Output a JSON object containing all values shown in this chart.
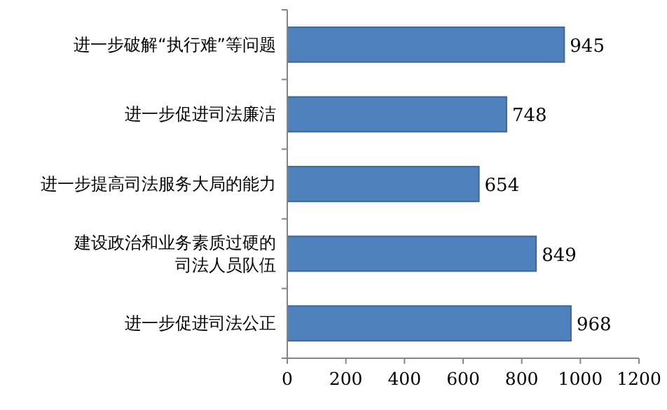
{
  "chart_data": {
    "type": "bar",
    "orientation": "horizontal",
    "categories": [
      "进一步破解“执行难”等问题",
      "进一步促进司法廉洁",
      "进一步提高司法服务大局的能力",
      "建设政治和业务素质过硬的司法人员队伍",
      "进一步促进司法公正"
    ],
    "values": [
      945,
      748,
      654,
      849,
      968
    ],
    "color": "#4f81bd",
    "data_labels": true,
    "xlim": [
      0,
      1200
    ],
    "xticks": [
      0,
      200,
      400,
      600,
      800,
      1000,
      1200
    ],
    "grid": false
  }
}
